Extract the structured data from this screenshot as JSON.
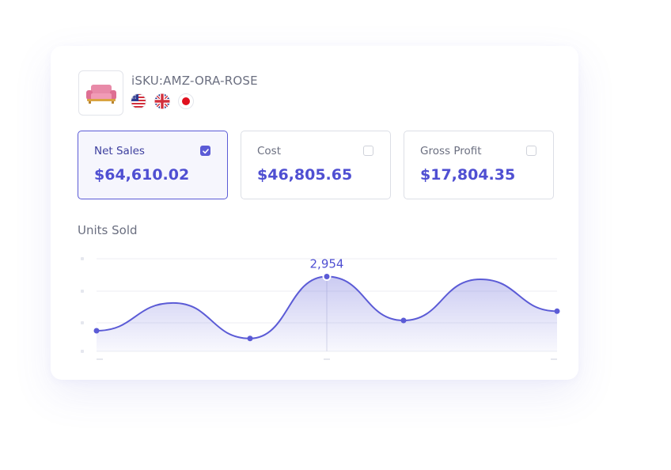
{
  "product": {
    "sku": "iSKU:AMZ-ORA-ROSE",
    "thumbnail_icon": "sofa-icon",
    "marketplaces": [
      {
        "name": "United States",
        "icon": "us-flag-icon"
      },
      {
        "name": "United Kingdom",
        "icon": "uk-flag-icon"
      },
      {
        "name": "Japan",
        "icon": "japan-flag-icon"
      }
    ]
  },
  "metrics": [
    {
      "label": "Net Sales",
      "value": "$64,610.02",
      "checked": true
    },
    {
      "label": "Cost",
      "value": "$46,805.65",
      "checked": false
    },
    {
      "label": "Gross Profit",
      "value": "$17,804.35",
      "checked": false
    }
  ],
  "colors": {
    "accent": "#5b5bd6",
    "value_text": "#4f4fd2",
    "muted_text": "#6b6f80",
    "border": "#dcdfe6"
  },
  "chart": {
    "title": "Units Sold",
    "chart_data": {
      "type": "area",
      "title": "Units Sold",
      "x": [
        0,
        1,
        2,
        3,
        4,
        5,
        6
      ],
      "series": [
        {
          "values": [
            1900,
            2440,
            1750,
            2954,
            2100,
            2900,
            2280
          ]
        }
      ],
      "annotations": [
        {
          "x": 3,
          "value": 2954,
          "label": "2,954"
        }
      ],
      "marked_points": [
        0,
        2,
        3,
        4,
        6
      ],
      "ylim": [
        1500,
        3300
      ],
      "xlim": [
        0,
        6
      ],
      "grid": true,
      "tick_labels_visible": false
    }
  }
}
